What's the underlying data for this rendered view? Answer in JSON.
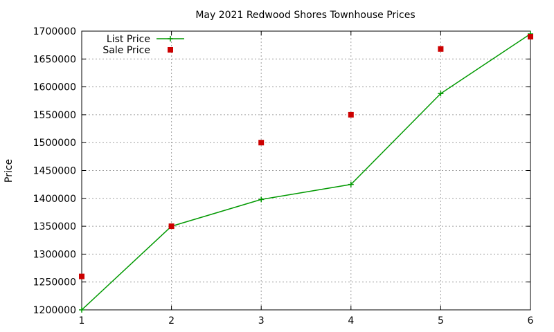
{
  "chart_data": {
    "type": "line",
    "title": "May 2021 Redwood Shores Townhouse Prices",
    "xlabel": "",
    "ylabel": "Price",
    "x": [
      1,
      2,
      3,
      4,
      5,
      6
    ],
    "xlim": [
      1,
      6
    ],
    "ylim": [
      1200000,
      1700000
    ],
    "xticks": [
      "1",
      "2",
      "3",
      "4",
      "5",
      "6"
    ],
    "yticks": [
      1200000,
      1250000,
      1300000,
      1350000,
      1400000,
      1450000,
      1500000,
      1550000,
      1600000,
      1650000,
      1700000
    ],
    "ytick_labels": [
      "1200000",
      "1250000",
      "1300000",
      "1350000",
      "1400000",
      "1450000",
      "1500000",
      "1550000",
      "1600000",
      "1650000",
      "1700000"
    ],
    "grid": true,
    "legend_position": "top-left",
    "series": [
      {
        "name": "List Price",
        "style": "line+cross",
        "color": "#009900",
        "values": [
          1200000,
          1350000,
          1398000,
          1425000,
          1588000,
          1695000
        ]
      },
      {
        "name": "Sale Price",
        "style": "square-points",
        "color": "#cc0000",
        "values": [
          1260000,
          1350000,
          1500000,
          1550000,
          1668000,
          1690000
        ]
      }
    ]
  }
}
